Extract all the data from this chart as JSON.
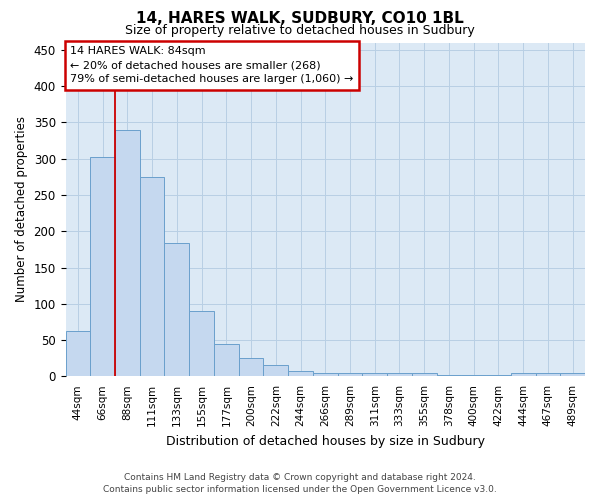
{
  "title": "14, HARES WALK, SUDBURY, CO10 1BL",
  "subtitle": "Size of property relative to detached houses in Sudbury",
  "xlabel": "Distribution of detached houses by size in Sudbury",
  "ylabel": "Number of detached properties",
  "categories": [
    "44sqm",
    "66sqm",
    "88sqm",
    "111sqm",
    "133sqm",
    "155sqm",
    "177sqm",
    "200sqm",
    "222sqm",
    "244sqm",
    "266sqm",
    "289sqm",
    "311sqm",
    "333sqm",
    "355sqm",
    "378sqm",
    "400sqm",
    "422sqm",
    "444sqm",
    "467sqm",
    "489sqm"
  ],
  "values": [
    62,
    302,
    340,
    275,
    184,
    90,
    45,
    25,
    16,
    8,
    5,
    5,
    4,
    4,
    4,
    2,
    2,
    2,
    4,
    4,
    4
  ],
  "bar_color": "#c5d8ef",
  "bar_edge_color": "#6aa0cc",
  "vline_color": "#cc0000",
  "annotation_line1": "14 HARES WALK: 84sqm",
  "annotation_line2": "← 20% of detached houses are smaller (268)",
  "annotation_line3": "79% of semi-detached houses are larger (1,060) →",
  "ylim": [
    0,
    460
  ],
  "yticks": [
    0,
    50,
    100,
    150,
    200,
    250,
    300,
    350,
    400,
    450
  ],
  "footer_line1": "Contains HM Land Registry data © Crown copyright and database right 2024.",
  "footer_line2": "Contains public sector information licensed under the Open Government Licence v3.0.",
  "plot_bg_color": "#dce9f5",
  "fig_bg_color": "#ffffff",
  "grid_color": "#b8cfe4"
}
